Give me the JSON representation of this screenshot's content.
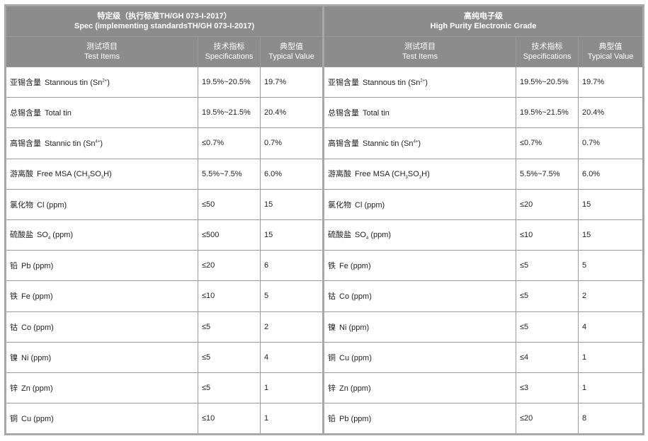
{
  "groups": [
    {
      "cn": "特定级（执行标准TH/GH 073-I-2017）",
      "en": "Spec (implementing standardsTH/GH 073-I-2017)"
    },
    {
      "cn": "高纯电子级",
      "en": "High Purity Electronic Grade"
    }
  ],
  "columns": {
    "item_cn": "测试项目",
    "item_en": "Test Items",
    "spec_cn": "技术指标",
    "spec_en": "Specifications",
    "typ_cn": "典型值",
    "typ_en": "Typical Value"
  },
  "left": [
    {
      "cn": "亚锡含量",
      "en": "Stannous tin (Sn",
      "sup": "2+",
      "sub": "",
      "tail": ")",
      "spec": "19.5%~20.5%",
      "typ": "19.7%"
    },
    {
      "cn": "总锡含量",
      "en": "Total tin",
      "sup": "",
      "sub": "",
      "tail": "",
      "spec": "19.5%~21.5%",
      "typ": "20.4%"
    },
    {
      "cn": "高锡含量",
      "en": "Stannic tin  (Sn",
      "sup": "4+",
      "sub": "",
      "tail": ")",
      "spec": "≤0.7%",
      "typ": "0.7%"
    },
    {
      "cn": "游离酸",
      "en": "Free MSA  (CH",
      "sup": "",
      "sub": "3",
      "tail": "SO3H)",
      "spec": "5.5%~7.5%",
      "typ": "6.0%"
    },
    {
      "cn": "氯化物",
      "en": "Cl (ppm)",
      "sup": "",
      "sub": "",
      "tail": "",
      "spec": "≤50",
      "typ": "15"
    },
    {
      "cn": "硫酸盐",
      "en": "SO",
      "sup": "",
      "sub": "4",
      "tail": " (ppm)",
      "spec": "≤500",
      "typ": "15"
    },
    {
      "cn": "铅",
      "en": "Pb (ppm)",
      "sup": "",
      "sub": "",
      "tail": "",
      "spec": "≤20",
      "typ": "6"
    },
    {
      "cn": "铁",
      "en": "Fe (ppm)",
      "sup": "",
      "sub": "",
      "tail": "",
      "spec": "≤10",
      "typ": "5"
    },
    {
      "cn": "钴",
      "en": "Co (ppm)",
      "sup": "",
      "sub": "",
      "tail": "",
      "spec": "≤5",
      "typ": "2"
    },
    {
      "cn": "镍",
      "en": "Ni (ppm)",
      "sup": "",
      "sub": "",
      "tail": "",
      "spec": "≤5",
      "typ": "4"
    },
    {
      "cn": "锌",
      "en": "Zn (ppm)",
      "sup": "",
      "sub": "",
      "tail": "",
      "spec": "≤5",
      "typ": "1"
    },
    {
      "cn": "铜",
      "en": "Cu (ppm)",
      "sup": "",
      "sub": "",
      "tail": "",
      "spec": "≤10",
      "typ": "1"
    }
  ],
  "right": [
    {
      "cn": "亚锡含量",
      "en": "Stannous tin (Sn",
      "sup": "2+",
      "sub": "",
      "tail": ")",
      "spec": "19.5%~20.5%",
      "typ": "19.7%"
    },
    {
      "cn": "总锡含量",
      "en": "Total tin",
      "sup": "",
      "sub": "",
      "tail": "",
      "spec": "19.5%~21.5%",
      "typ": "20.4%"
    },
    {
      "cn": "高锡含量",
      "en": "Stannic tin  (Sn",
      "sup": "4+",
      "sub": "",
      "tail": ")",
      "spec": "≤0.7%",
      "typ": "0.7%"
    },
    {
      "cn": "游离酸",
      "en": "Free MSA  (CH",
      "sup": "",
      "sub": "3",
      "tail": "SO3H)",
      "spec": "5.5%~7.5%",
      "typ": "6.0%"
    },
    {
      "cn": "氯化物",
      "en": "Cl (ppm)",
      "sup": "",
      "sub": "",
      "tail": "",
      "spec": "≤20",
      "typ": "15"
    },
    {
      "cn": "硫酸盐",
      "en": "SO",
      "sup": "",
      "sub": "4",
      "tail": " (ppm)",
      "spec": "≤10",
      "typ": "15"
    },
    {
      "cn": "铁",
      "en": "Fe (ppm)",
      "sup": "",
      "sub": "",
      "tail": "",
      "spec": "≤5",
      "typ": "5"
    },
    {
      "cn": "钴",
      "en": "Co (ppm)",
      "sup": "",
      "sub": "",
      "tail": "",
      "spec": "≤5",
      "typ": "2"
    },
    {
      "cn": "镍",
      "en": "Ni (ppm)",
      "sup": "",
      "sub": "",
      "tail": "",
      "spec": "≤5",
      "typ": "4"
    },
    {
      "cn": "铜",
      "en": "Cu (ppm)",
      "sup": "",
      "sub": "",
      "tail": "",
      "spec": "≤4",
      "typ": "1"
    },
    {
      "cn": "锌",
      "en": "Zn (ppm)",
      "sup": "",
      "sub": "",
      "tail": "",
      "spec": "≤3",
      "typ": "1"
    },
    {
      "cn": "铅",
      "en": "Pb (ppm)",
      "sup": "",
      "sub": "",
      "tail": "",
      "spec": "≤20",
      "typ": "8"
    }
  ]
}
